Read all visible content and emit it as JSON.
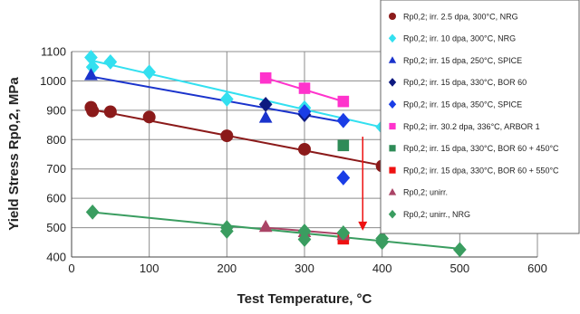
{
  "chart_data": {
    "type": "scatter",
    "xlabel": "Test Temperature, °C",
    "ylabel": "Yield Stress Rp0,2, MPa",
    "xlim": [
      0,
      600
    ],
    "ylim": [
      400,
      1100
    ],
    "xticks": [
      0,
      100,
      200,
      300,
      400,
      500,
      600
    ],
    "yticks": [
      400,
      500,
      600,
      700,
      800,
      900,
      1000,
      1100
    ],
    "grid": true,
    "legend_position": "right",
    "series": [
      {
        "name": "Rp0,2; irr. 2.5 dpa, 300°C, NRG",
        "color": "#8b1a1a",
        "marker": "circle",
        "points": [
          [
            25,
            910
          ],
          [
            27,
            898
          ],
          [
            50,
            895
          ],
          [
            100,
            877
          ],
          [
            200,
            813
          ],
          [
            300,
            767
          ],
          [
            400,
            710
          ]
        ],
        "fit": [
          [
            25,
            903
          ],
          [
            400,
            712
          ]
        ]
      },
      {
        "name": "Rp0,2; irr. 10 dpa, 300°C, NRG",
        "color": "#33e0f0",
        "marker": "diamond",
        "points": [
          [
            25,
            1080
          ],
          [
            27,
            1047
          ],
          [
            50,
            1065
          ],
          [
            100,
            1030
          ],
          [
            200,
            938
          ],
          [
            300,
            908
          ],
          [
            400,
            843
          ]
        ],
        "fit": [
          [
            25,
            1070
          ],
          [
            400,
            842
          ]
        ]
      },
      {
        "name": "Rp0,2; irr. 15 dpa, 250°C, SPICE",
        "color": "#1a33cc",
        "marker": "triangle",
        "points": [
          [
            25,
            1020
          ],
          [
            250,
            875
          ]
        ],
        "fit": [
          [
            25,
            1015
          ],
          [
            350,
            860
          ]
        ]
      },
      {
        "name": "Rp0,2; irr. 15 dpa, 330°C, BOR 60",
        "color": "#0d1a80",
        "marker": "diamond",
        "points": [
          [
            250,
            920
          ],
          [
            300,
            885
          ]
        ]
      },
      {
        "name": "Rp0,2; irr. 15 dpa, 350°C, SPICE",
        "color": "#1a3de6",
        "marker": "diamond",
        "points": [
          [
            300,
            895
          ],
          [
            350,
            865
          ],
          [
            350,
            670
          ]
        ]
      },
      {
        "name": "Rp0,2; irr. 30.2 dpa, 336°C, ARBOR 1",
        "color": "#ff33cc",
        "marker": "square",
        "points": [
          [
            250,
            1010
          ],
          [
            300,
            975
          ],
          [
            350,
            930
          ]
        ],
        "fit": [
          [
            250,
            1010
          ],
          [
            350,
            930
          ]
        ]
      },
      {
        "name": "Rp0,2; irr. 15 dpa, 330°C, BOR 60 + 450°C",
        "color": "#2e8b57",
        "marker": "square",
        "points": [
          [
            350,
            780
          ]
        ]
      },
      {
        "name": "Rp0,2; irr. 15 dpa, 330°C, BOR 60 + 550°C",
        "color": "#ee1111",
        "marker": "square",
        "points": [
          [
            350,
            462
          ]
        ]
      },
      {
        "name": "Rp0,2; unirr.",
        "color": "#aa4466",
        "marker": "triangle",
        "points": [
          [
            250,
            503
          ],
          [
            300,
            485
          ],
          [
            350,
            475
          ]
        ],
        "fit": [
          [
            250,
            500
          ],
          [
            350,
            478
          ]
        ]
      },
      {
        "name": "Rp0,2; unirr., NRG",
        "color": "#3a9d60",
        "marker": "diamond",
        "points": [
          [
            27,
            553
          ],
          [
            200,
            500
          ],
          [
            200,
            488
          ],
          [
            300,
            488
          ],
          [
            300,
            460
          ],
          [
            350,
            482
          ],
          [
            400,
            463
          ],
          [
            400,
            450
          ],
          [
            500,
            425
          ]
        ],
        "fit": [
          [
            25,
            553
          ],
          [
            500,
            428
          ]
        ]
      }
    ],
    "annotations": [
      {
        "type": "arrow",
        "color": "#ee1111",
        "from": [
          375,
          810
        ],
        "to": [
          375,
          490
        ]
      }
    ]
  }
}
